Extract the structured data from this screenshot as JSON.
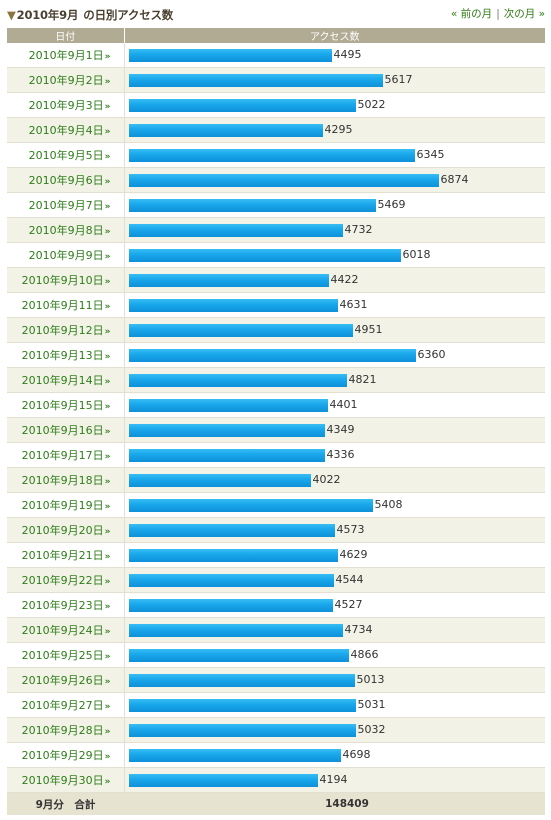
{
  "header": {
    "title_month": "2010年9月",
    "title_suffix": "の日別アクセス数",
    "prev_label": "« 前の月",
    "next_label": "次の月 »"
  },
  "table": {
    "col_date": "日付",
    "col_count": "アクセス数",
    "max_value": 7000,
    "rows": [
      {
        "date": "2010年9月1日",
        "count": 4495
      },
      {
        "date": "2010年9月2日",
        "count": 5617
      },
      {
        "date": "2010年9月3日",
        "count": 5022
      },
      {
        "date": "2010年9月4日",
        "count": 4295
      },
      {
        "date": "2010年9月5日",
        "count": 6345
      },
      {
        "date": "2010年9月6日",
        "count": 6874
      },
      {
        "date": "2010年9月7日",
        "count": 5469
      },
      {
        "date": "2010年9月8日",
        "count": 4732
      },
      {
        "date": "2010年9月9日",
        "count": 6018
      },
      {
        "date": "2010年9月10日",
        "count": 4422
      },
      {
        "date": "2010年9月11日",
        "count": 4631
      },
      {
        "date": "2010年9月12日",
        "count": 4951
      },
      {
        "date": "2010年9月13日",
        "count": 6360
      },
      {
        "date": "2010年9月14日",
        "count": 4821
      },
      {
        "date": "2010年9月15日",
        "count": 4401
      },
      {
        "date": "2010年9月16日",
        "count": 4349
      },
      {
        "date": "2010年9月17日",
        "count": 4336
      },
      {
        "date": "2010年9月18日",
        "count": 4022
      },
      {
        "date": "2010年9月19日",
        "count": 5408
      },
      {
        "date": "2010年9月20日",
        "count": 4573
      },
      {
        "date": "2010年9月21日",
        "count": 4629
      },
      {
        "date": "2010年9月22日",
        "count": 4544
      },
      {
        "date": "2010年9月23日",
        "count": 4527
      },
      {
        "date": "2010年9月24日",
        "count": 4734
      },
      {
        "date": "2010年9月25日",
        "count": 4866
      },
      {
        "date": "2010年9月26日",
        "count": 5013
      },
      {
        "date": "2010年9月27日",
        "count": 5031
      },
      {
        "date": "2010年9月28日",
        "count": 5032
      },
      {
        "date": "2010年9月29日",
        "count": 4698
      },
      {
        "date": "2010年9月30日",
        "count": 4194
      }
    ],
    "total_label": "9月分　合計",
    "total_value": "148409"
  },
  "chart_data": {
    "type": "bar",
    "orientation": "horizontal",
    "categories": [
      "2010年9月1日",
      "2010年9月2日",
      "2010年9月3日",
      "2010年9月4日",
      "2010年9月5日",
      "2010年9月6日",
      "2010年9月7日",
      "2010年9月8日",
      "2010年9月9日",
      "2010年9月10日",
      "2010年9月11日",
      "2010年9月12日",
      "2010年9月13日",
      "2010年9月14日",
      "2010年9月15日",
      "2010年9月16日",
      "2010年9月17日",
      "2010年9月18日",
      "2010年9月19日",
      "2010年9月20日",
      "2010年9月21日",
      "2010年9月22日",
      "2010年9月23日",
      "2010年9月24日",
      "2010年9月25日",
      "2010年9月26日",
      "2010年9月27日",
      "2010年9月28日",
      "2010年9月29日",
      "2010年9月30日"
    ],
    "values": [
      4495,
      5617,
      5022,
      4295,
      6345,
      6874,
      5469,
      4732,
      6018,
      4422,
      4631,
      4951,
      6360,
      4821,
      4401,
      4349,
      4336,
      4022,
      5408,
      4573,
      4629,
      4544,
      4527,
      4734,
      4866,
      5013,
      5031,
      5032,
      4698,
      4194
    ],
    "title": "2010年9月 の日別アクセス数",
    "bar_color": "#1aa8ec"
  }
}
